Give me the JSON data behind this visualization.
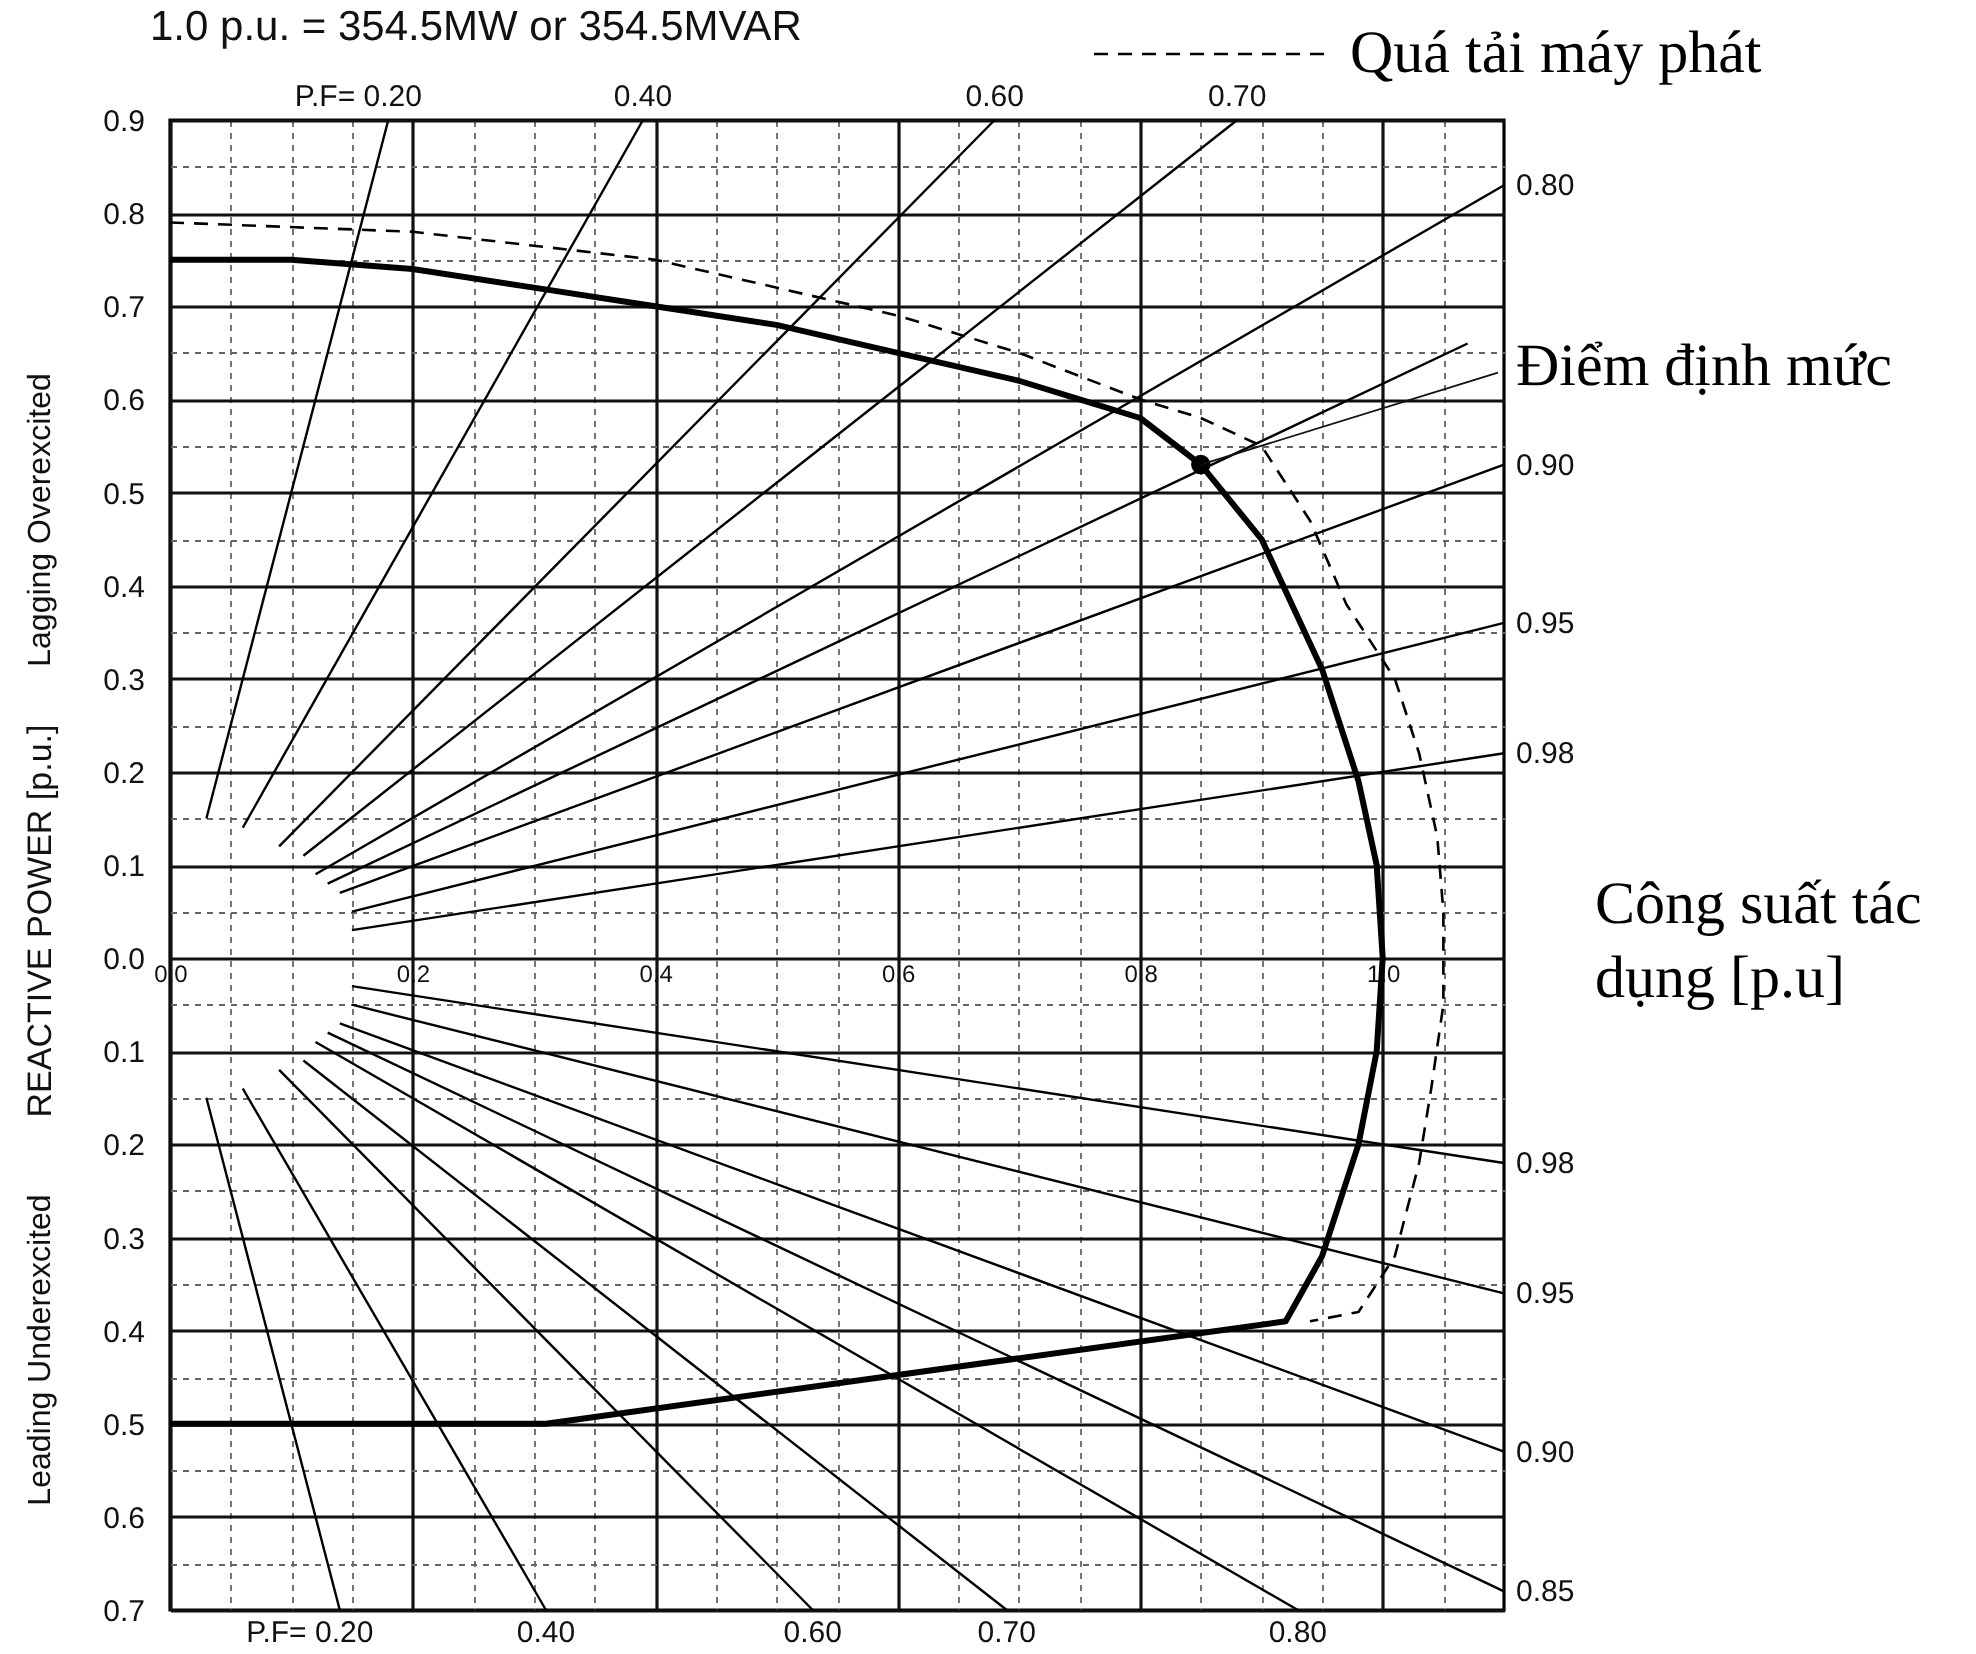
{
  "chart_data": {
    "type": "line",
    "title": "1.0 p.u. = 354.5MW or 354.5MVAR",
    "xlabel": "Công suất tác dụng [p.u]",
    "ylabel": "REACTIVE POWER [p.u.]",
    "xlim": [
      0,
      1.1
    ],
    "ylim": [
      -0.7,
      0.9
    ],
    "xticks": [
      {
        "value": 0,
        "label": "0.0"
      },
      {
        "value": 0.05,
        "label": null
      },
      {
        "value": 0.1,
        "label": null
      },
      {
        "value": 0.15,
        "label": null
      },
      0.2,
      {
        "value": 0.25,
        "label": null
      },
      {
        "value": 0.3,
        "label": null
      },
      {
        "value": 0.35,
        "label": null
      },
      0.4,
      {
        "value": 0.45,
        "label": null
      },
      {
        "value": 0.5,
        "label": null
      },
      {
        "value": 0.55,
        "label": null
      },
      0.6,
      {
        "value": 0.65,
        "label": null
      },
      {
        "value": 0.7,
        "label": null
      },
      {
        "value": 0.75,
        "label": null
      },
      0.8,
      {
        "value": 0.85,
        "label": null
      },
      {
        "value": 0.9,
        "label": null
      },
      {
        "value": 0.95,
        "label": null
      },
      {
        "value": 1,
        "label": "1.0"
      },
      {
        "value": 1.05,
        "label": null
      }
    ],
    "yticks": [
      0.9,
      {
        "value": 0.85,
        "label": null
      },
      0.8,
      {
        "value": 0.75,
        "label": null
      },
      0.7,
      {
        "value": 0.65,
        "label": null
      },
      0.6,
      {
        "value": 0.55,
        "label": null
      },
      0.5,
      {
        "value": 0.45,
        "label": null
      },
      0.4,
      {
        "value": 0.35,
        "label": null
      },
      0.3,
      {
        "value": 0.25,
        "label": null
      },
      0.2,
      {
        "value": 0.15,
        "label": null
      },
      0.1,
      {
        "value": 0.05,
        "label": null
      },
      {
        "value": 0,
        "label": "0.0"
      },
      {
        "value": -0.05,
        "label": null
      },
      {
        "value": -0.1,
        "label": "0.1"
      },
      {
        "value": -0.15,
        "label": null
      },
      {
        "value": -0.2,
        "label": "0.2"
      },
      {
        "value": -0.25,
        "label": null
      },
      {
        "value": -0.3,
        "label": "0.3"
      },
      {
        "value": -0.35,
        "label": null
      },
      {
        "value": -0.4,
        "label": "0.4"
      },
      {
        "value": -0.45,
        "label": null
      },
      {
        "value": -0.5,
        "label": "0.5"
      },
      {
        "value": -0.55,
        "label": null
      },
      {
        "value": -0.6,
        "label": "0.6"
      },
      {
        "value": -0.65,
        "label": null
      },
      {
        "value": -0.7,
        "label": "0.7"
      }
    ],
    "grid": true,
    "legend": "top right",
    "annotations": [
      "Lagging Overexcited",
      "Leading Underexcited",
      {
        "text": "Điểm định mức",
        "x": 0.85,
        "y": 0.53
      },
      {
        "text": "P.F= 0.20",
        "x": 0.18,
        "y": 0.9
      },
      {
        "text": "0.40",
        "x": 0.39,
        "y": 0.9
      },
      {
        "text": "0.60",
        "x": 0.68,
        "y": 0.9
      },
      {
        "text": "0.70",
        "x": 0.88,
        "y": 0.9
      },
      {
        "text": "0.80",
        "x": 1.1,
        "y": 0.83
      },
      {
        "text": "0.90",
        "x": 1.1,
        "y": 0.53
      },
      {
        "text": "0.95",
        "x": 1.1,
        "y": 0.36
      },
      {
        "text": "0.98",
        "x": 1.1,
        "y": 0.22
      },
      {
        "text": "0.98",
        "x": 1.1,
        "y": -0.22
      },
      {
        "text": "0.95",
        "x": 1.1,
        "y": -0.36
      },
      {
        "text": "0.90",
        "x": 1.1,
        "y": -0.53
      },
      {
        "text": "0.85",
        "x": 1.1,
        "y": -0.68
      },
      {
        "text": "0.80",
        "x": 0.93,
        "y": -0.7
      },
      {
        "text": "0.70",
        "x": 0.69,
        "y": -0.7
      },
      {
        "text": "0.60",
        "x": 0.53,
        "y": -0.7
      },
      {
        "text": "0.40",
        "x": 0.31,
        "y": -0.7
      },
      {
        "text": "P.F= 0.20",
        "x": 0.14,
        "y": -0.7
      }
    ],
    "series": [
      {
        "color": "#000000",
        "x": [
          0,
          0.1,
          0.2,
          0.3,
          0.4,
          0.5,
          0.6,
          0.7,
          0.75,
          0.8,
          0.85,
          0.9,
          0.95,
          0.98,
          0.995,
          1.0,
          0.995,
          0.98,
          0.95,
          0.92,
          0.31,
          0
        ],
        "values": [
          0.75,
          0.75,
          0.74,
          0.72,
          0.7,
          0.68,
          0.65,
          0.62,
          0.6,
          0.58,
          0.53,
          0.45,
          0.31,
          0.19,
          0.1,
          0,
          -0.1,
          -0.2,
          -0.32,
          -0.39,
          -0.5,
          -0.5
        ]
      },
      {
        "name": "Quá tải máy phát",
        "line_style": "dashed",
        "color": "#000000",
        "x": [
          0,
          0.2,
          0.4,
          0.6,
          0.7,
          0.8,
          0.85,
          0.9,
          0.94,
          0.97,
          1.01,
          1.03,
          1.045,
          1.05,
          1.05,
          1.04,
          1.03,
          1.01,
          0.98,
          0.94
        ],
        "values": [
          0.79,
          0.78,
          0.75,
          0.69,
          0.65,
          0.6,
          0.58,
          0.55,
          0.47,
          0.38,
          0.3,
          0.22,
          0.13,
          0.05,
          -0.05,
          -0.14,
          -0.22,
          -0.32,
          -0.38,
          -0.39
        ]
      },
      {
        "type": "scatter",
        "marker": "circle",
        "color": "#000000",
        "x": [
          0.85
        ],
        "values": [
          0.53
        ]
      },
      {
        "color": "#000000",
        "x": [
          0.03,
          0.18
        ],
        "values": [
          0.15,
          0.9
        ]
      },
      {
        "color": "#000000",
        "x": [
          0.06,
          0.39
        ],
        "values": [
          0.14,
          0.9
        ]
      },
      {
        "color": "#000000",
        "x": [
          0.09,
          0.68
        ],
        "values": [
          0.12,
          0.9
        ]
      },
      {
        "color": "#000000",
        "x": [
          0.11,
          0.88
        ],
        "values": [
          0.11,
          0.9
        ]
      },
      {
        "color": "#000000",
        "x": [
          0.12,
          1.1
        ],
        "values": [
          0.09,
          0.83
        ]
      },
      {
        "color": "#000000",
        "x": [
          0.13,
          1.07
        ],
        "values": [
          0.08,
          0.66
        ]
      },
      {
        "color": "#000000",
        "x": [
          0.14,
          1.1
        ],
        "values": [
          0.07,
          0.53
        ]
      },
      {
        "color": "#000000",
        "x": [
          0.15,
          1.1
        ],
        "values": [
          0.05,
          0.36
        ]
      },
      {
        "color": "#000000",
        "x": [
          0.15,
          1.1
        ],
        "values": [
          0.03,
          0.22
        ]
      },
      {
        "color": "#000000",
        "x": [
          0.03,
          0.14
        ],
        "values": [
          -0.15,
          -0.7
        ]
      },
      {
        "color": "#000000",
        "x": [
          0.06,
          0.31
        ],
        "values": [
          -0.14,
          -0.7
        ]
      },
      {
        "color": "#000000",
        "x": [
          0.09,
          0.53
        ],
        "values": [
          -0.12,
          -0.7
        ]
      },
      {
        "color": "#000000",
        "x": [
          0.11,
          0.69
        ],
        "values": [
          -0.11,
          -0.7
        ]
      },
      {
        "color": "#000000",
        "x": [
          0.12,
          0.93
        ],
        "values": [
          -0.09,
          -0.7
        ]
      },
      {
        "color": "#000000",
        "x": [
          0.13,
          1.1
        ],
        "values": [
          -0.08,
          -0.68
        ]
      },
      {
        "color": "#000000",
        "x": [
          0.14,
          1.1
        ],
        "values": [
          -0.07,
          -0.53
        ]
      },
      {
        "color": "#000000",
        "x": [
          0.15,
          1.1
        ],
        "values": [
          -0.05,
          -0.36
        ]
      },
      {
        "color": "#000000",
        "x": [
          0.15,
          1.1
        ],
        "values": [
          -0.03,
          -0.22
        ]
      }
    ]
  }
}
